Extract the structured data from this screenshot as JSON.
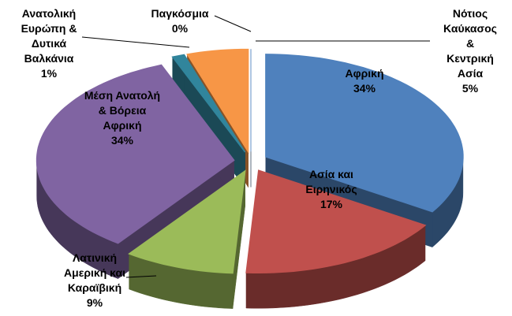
{
  "chart_data": {
    "type": "pie3d",
    "categories": [
      "Αφρική",
      "Ασία και\nΕιρηνικός",
      "Λατινική\nΑμερική και\nΚαραϊβική",
      "Μέση Ανατολή\n& Βόρεια\nΑφρική",
      "Ανατολική\nΕυρώπη &\nΔυτικά\nΒαλκάνια",
      "Νότιος\nΚαύκασος &\nΚεντρική\nΑσία",
      "Παγκόσμια"
    ],
    "values": [
      34,
      17,
      9,
      34,
      1,
      5,
      0
    ],
    "value_labels": [
      "34%",
      "17%",
      "9%",
      "34%",
      "1%",
      "5%",
      "0%"
    ],
    "colors": [
      "#4F81BD",
      "#C0504D",
      "#9BBB59",
      "#8064A2",
      "#31859C",
      "#F79646",
      "#95B3D7"
    ]
  }
}
